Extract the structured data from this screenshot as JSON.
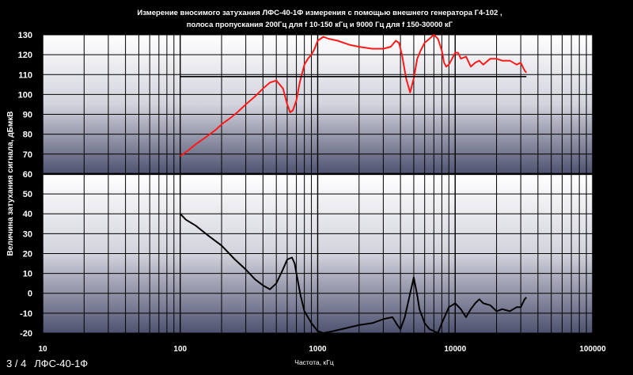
{
  "slide": {
    "counter": "3 / 4",
    "name": "ЛФС-40-1Ф"
  },
  "chart_data": {
    "type": "line",
    "title_line1": "Измерение вносимого затухания ЛФС-40-1Ф измерения с помощью внешнего генератора Г4-102 ,",
    "title_line2": "полоса пропускания  200Гц для f 10-150 кГц и 9000 Гц  для f 150-30000 кГ",
    "xlabel": "Частота,  кГц",
    "ylabel": "Величина затухания  сигнала,  дБмкВ",
    "x_scale": "log",
    "xlim": [
      10,
      100000
    ],
    "ylim": [
      -20,
      130
    ],
    "x_ticks": [
      10,
      100,
      1000,
      10000,
      100000
    ],
    "x_tick_labels": [
      "10",
      "100",
      "1000",
      "10000",
      "100000"
    ],
    "y_ticks": [
      130,
      120,
      110,
      100,
      90,
      80,
      70,
      60,
      50,
      40,
      30,
      20,
      10,
      0,
      -10,
      -20
    ],
    "y_tick_labels": [
      "130",
      "120",
      "110",
      "100",
      "90",
      "80",
      "70",
      "60",
      "50",
      "40",
      "30",
      "20",
      "10",
      "0",
      "-10",
      "-20"
    ],
    "grid": true,
    "series": [
      {
        "color": "#ff1a1a",
        "x": [
          100,
          115,
          130,
          150,
          180,
          200,
          230,
          260,
          300,
          350,
          400,
          450,
          500,
          560,
          600,
          630,
          660,
          700,
          740,
          800,
          850,
          900,
          950,
          1000,
          1100,
          1200,
          1400,
          1700,
          2000,
          2500,
          3000,
          3400,
          3700,
          3900,
          4100,
          4400,
          4700,
          5000,
          5300,
          5600,
          6000,
          6500,
          7000,
          7500,
          8000,
          8300,
          8600,
          9000,
          9500,
          10000,
          10500,
          11000,
          12000,
          13000,
          14000,
          15000,
          16000,
          18000,
          20000,
          22000,
          25000,
          28000,
          30000,
          32000,
          33000
        ],
        "y": [
          69,
          72,
          75,
          78,
          82,
          85,
          88,
          91,
          95,
          99,
          103,
          106,
          107,
          103,
          95,
          91,
          92,
          97,
          106,
          115,
          118,
          120,
          123,
          127,
          129,
          128,
          127,
          125,
          124,
          123,
          123,
          124,
          127,
          126,
          120,
          108,
          101,
          108,
          118,
          122,
          126,
          128,
          130,
          128,
          122,
          116,
          114,
          115,
          118,
          121,
          121,
          118,
          119,
          114,
          116,
          117,
          115,
          118,
          118,
          117,
          117,
          115,
          116,
          112,
          111
        ]
      },
      {
        "color": "#000000",
        "x": [
          100,
          110,
          130,
          160,
          200,
          250,
          300,
          350,
          400,
          450,
          500,
          550,
          600,
          650,
          680,
          700,
          750,
          800,
          850,
          900,
          1000,
          1100,
          1300,
          1500,
          2000,
          2500,
          3000,
          3500,
          3800,
          4000,
          4300,
          4600,
          5000,
          5300,
          5500,
          6000,
          6500,
          7000,
          7500,
          8000,
          9000,
          10000,
          11000,
          12000,
          13000,
          14000,
          15000,
          16000,
          18000,
          20000,
          22000,
          25000,
          28000,
          30000,
          32000,
          33000
        ],
        "y": [
          40,
          37,
          34,
          29,
          24,
          17,
          12,
          7,
          4,
          2,
          5,
          11,
          17,
          18,
          15,
          10,
          -1,
          -9,
          -12,
          -15,
          -19,
          -20,
          -19,
          -18,
          -16,
          -15,
          -13,
          -12,
          -16,
          -18,
          -12,
          -3,
          8,
          -1,
          -8,
          -15,
          -18,
          -19,
          -20,
          -15,
          -7,
          -5,
          -8,
          -12,
          -8,
          -5,
          -3,
          -5,
          -6,
          -9,
          -8,
          -9,
          -7,
          -7,
          -3,
          -2
        ]
      },
      {
        "color": "#000000",
        "x": [
          100,
          33000
        ],
        "y": [
          109,
          109
        ]
      }
    ]
  }
}
